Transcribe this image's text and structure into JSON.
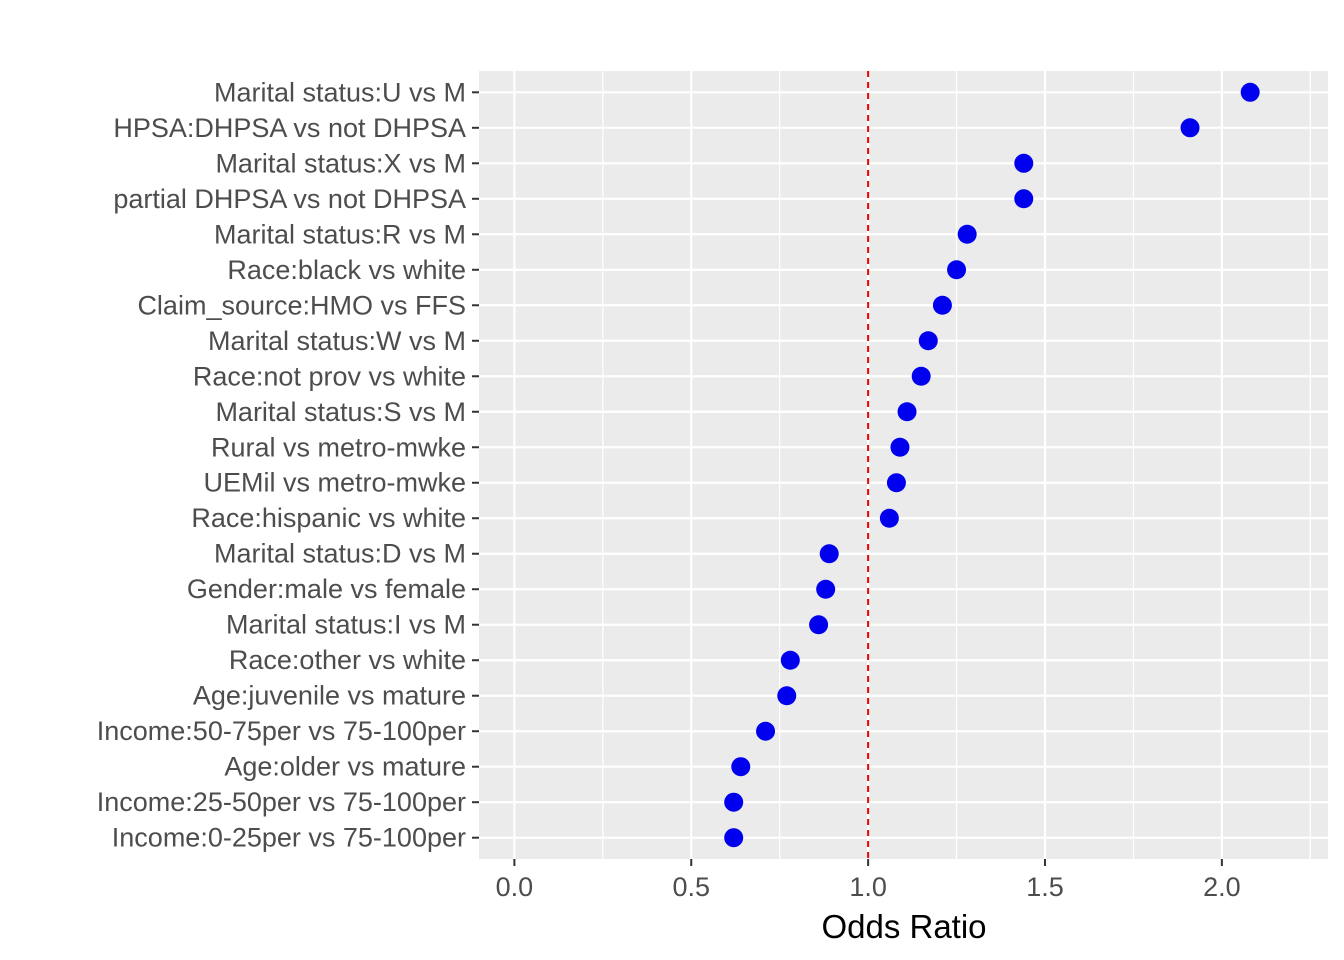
{
  "chart_data": {
    "type": "scatter",
    "title": "",
    "xlabel": "Odds Ratio",
    "ylabel": "",
    "xlim": [
      -0.1,
      2.3
    ],
    "x_ticks": [
      "0.0",
      "0.5",
      "1.0",
      "1.5",
      "2.0"
    ],
    "x_tick_values": [
      0.0,
      0.5,
      1.0,
      1.5,
      2.0
    ],
    "reference_line": {
      "x": 1.0,
      "style": "dashed",
      "color": "#ee0000"
    },
    "point_color": "#0000ee",
    "panel_background": "#ebebeb",
    "grid": true,
    "categories": [
      "Marital status:U vs M",
      "HPSA:DHPSA vs not DHPSA",
      "Marital status:X vs M",
      "partial DHPSA vs not DHPSA",
      "Marital status:R vs M",
      "Race:black vs white",
      "Claim_source:HMO vs FFS",
      "Marital status:W vs M",
      "Race:not prov vs white",
      "Marital status:S vs M",
      "Rural vs metro-mwke",
      "UEMil vs metro-mwke",
      "Race:hispanic vs white",
      "Marital status:D vs M",
      "Gender:male vs female",
      "Marital status:I vs M",
      "Race:other vs white",
      "Age:juvenile vs mature",
      "Income:50-75per vs 75-100per",
      "Age:older vs mature",
      "Income:25-50per vs 75-100per",
      "Income:0-25per vs 75-100per"
    ],
    "values": [
      2.08,
      1.91,
      1.44,
      1.44,
      1.28,
      1.25,
      1.21,
      1.17,
      1.15,
      1.11,
      1.09,
      1.08,
      1.06,
      0.89,
      0.88,
      0.86,
      0.78,
      0.77,
      0.71,
      0.64,
      0.62,
      0.62
    ]
  }
}
